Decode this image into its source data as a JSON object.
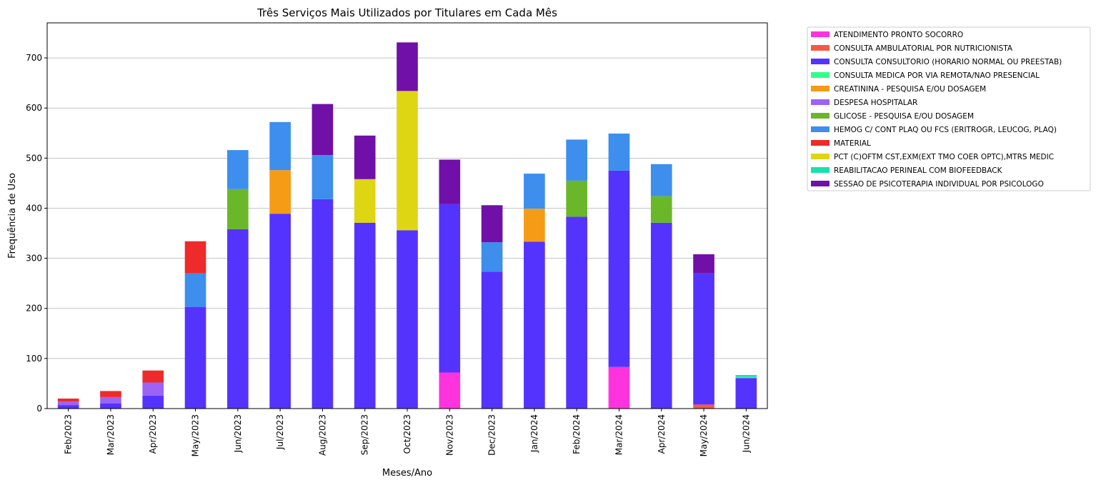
{
  "chart_data": {
    "type": "bar",
    "stacked": true,
    "title": "Três Serviços Mais Utilizados por Titulares em Cada Mês",
    "xlabel": "Meses/Ano",
    "ylabel": "Frequência de Uso",
    "ylim": [
      0,
      770
    ],
    "yticks": [
      0,
      100,
      200,
      300,
      400,
      500,
      600,
      700
    ],
    "grid": "horizontal",
    "legend_position": "outside-right",
    "categories": [
      "Feb/2023",
      "Mar/2023",
      "Apr/2023",
      "May/2023",
      "Jun/2023",
      "Jul/2023",
      "Aug/2023",
      "Sep/2023",
      "Oct/2023",
      "Nov/2023",
      "Dec/2023",
      "Jan/2024",
      "Feb/2024",
      "Mar/2024",
      "Apr/2024",
      "May/2024",
      "Jun/2024"
    ],
    "series": [
      {
        "name": "ATENDIMENTO PRONTO SOCORRO",
        "color": "#ff33dd",
        "values": [
          0,
          0,
          0,
          0,
          0,
          0,
          0,
          0,
          0,
          72,
          0,
          0,
          0,
          83,
          0,
          0,
          0
        ]
      },
      {
        "name": "CONSULTA AMBULATORIAL POR NUTRICIONISTA",
        "color": "#f55a45",
        "values": [
          0,
          0,
          0,
          0,
          0,
          0,
          0,
          0,
          0,
          0,
          0,
          0,
          0,
          0,
          0,
          8,
          0
        ]
      },
      {
        "name": "CONSULTA CONSULTORIO (HORARIO NORMAL OU PREESTAB)",
        "color": "#5533ff",
        "values": [
          7,
          10,
          26,
          203,
          358,
          389,
          418,
          371,
          356,
          336,
          273,
          333,
          383,
          392,
          371,
          262,
          61
        ]
      },
      {
        "name": "CONSULTA MEDICA POR VIA REMOTA/NAO PRESENCIAL",
        "color": "#33ff88",
        "values": [
          0,
          0,
          0,
          0,
          0,
          0,
          0,
          0,
          0,
          0,
          0,
          0,
          0,
          0,
          0,
          0,
          2
        ]
      },
      {
        "name": "CREATININA - PESQUISA E/OU DOSAGEM",
        "color": "#f59b16",
        "values": [
          0,
          0,
          0,
          0,
          0,
          87,
          0,
          0,
          0,
          0,
          0,
          66,
          0,
          0,
          0,
          0,
          0
        ]
      },
      {
        "name": "DESPESA HOSPITALAR",
        "color": "#9c63f5",
        "values": [
          7,
          13,
          26,
          0,
          0,
          0,
          0,
          0,
          0,
          0,
          0,
          0,
          0,
          0,
          0,
          0,
          0
        ]
      },
      {
        "name": "GLICOSE - PESQUISA E/OU DOSAGEM",
        "color": "#6ab82a",
        "values": [
          0,
          0,
          0,
          0,
          80,
          0,
          0,
          0,
          0,
          0,
          0,
          0,
          72,
          0,
          53,
          0,
          0
        ]
      },
      {
        "name": "HEMOG C/ CONT PLAQ OU FCS (ERITROGR, LEUCOG, PLAQ)",
        "color": "#3d8eed",
        "values": [
          0,
          0,
          0,
          67,
          78,
          96,
          88,
          0,
          0,
          0,
          59,
          70,
          82,
          74,
          64,
          0,
          0
        ]
      },
      {
        "name": "MATERIAL",
        "color": "#ee2a2a",
        "values": [
          6,
          12,
          24,
          64,
          0,
          0,
          0,
          0,
          0,
          0,
          0,
          0,
          0,
          0,
          0,
          0,
          0
        ]
      },
      {
        "name": "PCT (C)OFTM CST,EXM(EXT TMO COER OPTC),MTRS MEDIC",
        "color": "#ded612",
        "values": [
          0,
          0,
          0,
          0,
          0,
          0,
          0,
          87,
          278,
          0,
          0,
          0,
          0,
          0,
          0,
          0,
          0
        ]
      },
      {
        "name": "REABILITACAO PERINEAL COM BIOFEEDBACK",
        "color": "#1ae0b0",
        "values": [
          0,
          0,
          0,
          0,
          0,
          0,
          0,
          0,
          0,
          0,
          0,
          0,
          0,
          0,
          0,
          0,
          4
        ]
      },
      {
        "name": "SESSAO DE PSICOTERAPIA INDIVIDUAL POR PSICOLOGO",
        "color": "#7010a8",
        "values": [
          0,
          0,
          0,
          0,
          0,
          0,
          102,
          87,
          97,
          89,
          74,
          0,
          0,
          0,
          0,
          38,
          0
        ]
      }
    ]
  }
}
